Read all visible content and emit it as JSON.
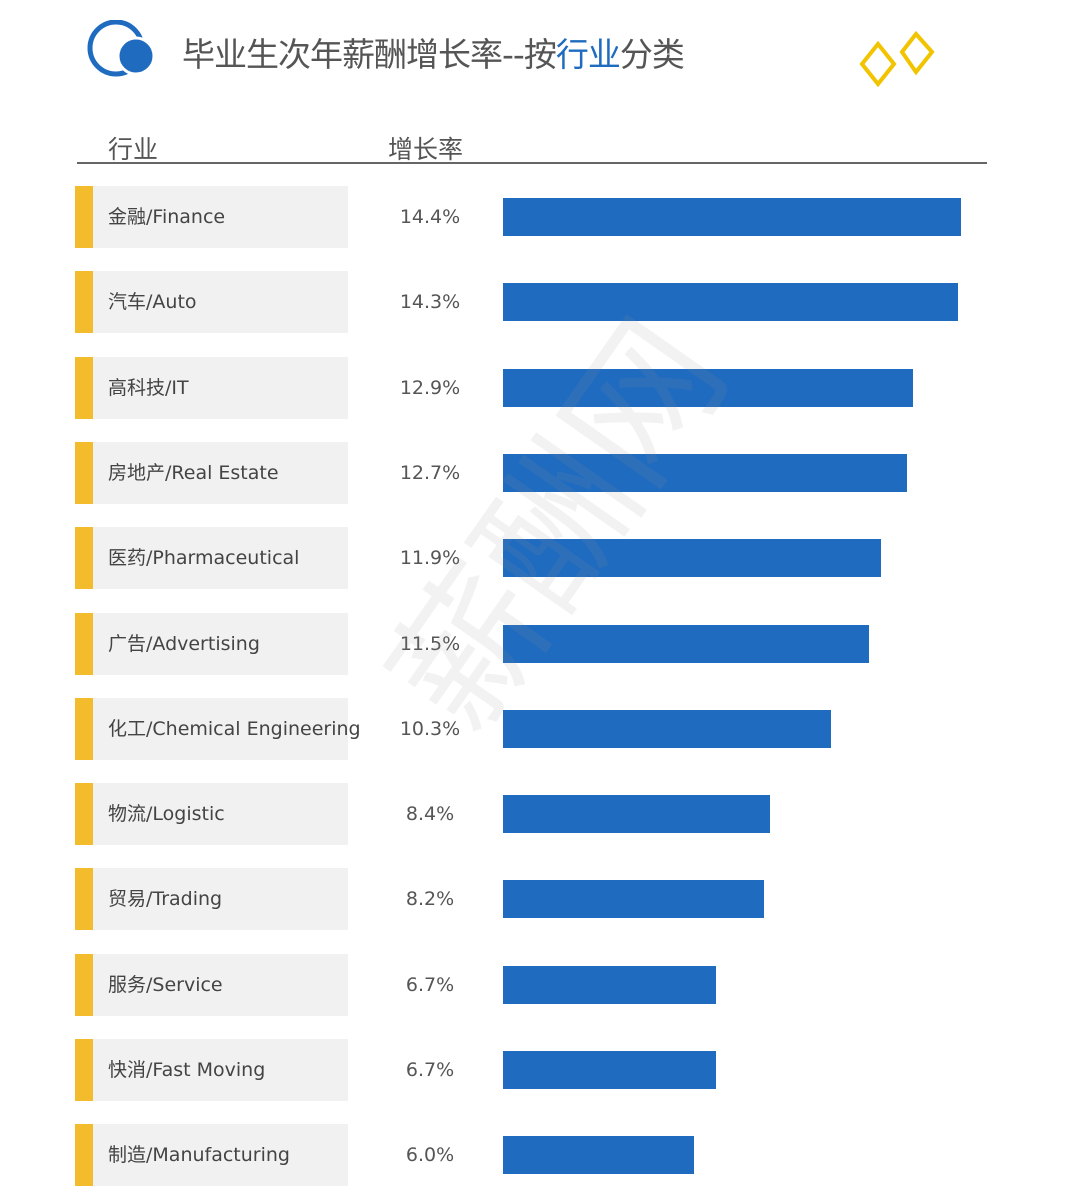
{
  "title_prefix": "毕业生次年薪酬增长率--按",
  "title_highlight": "行业",
  "title_suffix": "分类",
  "header": {
    "industry": "行业",
    "growth": "增长率"
  },
  "watermark": "薪酬网",
  "colors": {
    "bar": "#1f6bbf",
    "accent": "#f2bc2c"
  },
  "chart_data": {
    "type": "bar",
    "orientation": "horizontal",
    "title": "毕业生次年薪酬增长率--按行业分类",
    "xlabel": "增长率",
    "ylabel": "行业",
    "unit": "%",
    "xlim": [
      0,
      14.4
    ],
    "categories": [
      "金融/Finance",
      "汽车/Auto",
      "高科技/IT",
      "房地产/Real Estate",
      "医药/Pharmaceutical",
      "广告/Advertising",
      "化工/Chemical Engineering",
      "物流/Logistic",
      "贸易/Trading",
      "服务/Service",
      "快消/Fast Moving",
      "制造/Manufacturing"
    ],
    "values": [
      14.4,
      14.3,
      12.9,
      12.7,
      11.9,
      11.5,
      10.3,
      8.4,
      8.2,
      6.7,
      6.7,
      6.0
    ],
    "labels": [
      "14.4%",
      "14.3%",
      "12.9%",
      "12.7%",
      "11.9%",
      "11.5%",
      "10.3%",
      "8.4%",
      "8.2%",
      "6.7%",
      "6.7%",
      "6.0%"
    ]
  }
}
